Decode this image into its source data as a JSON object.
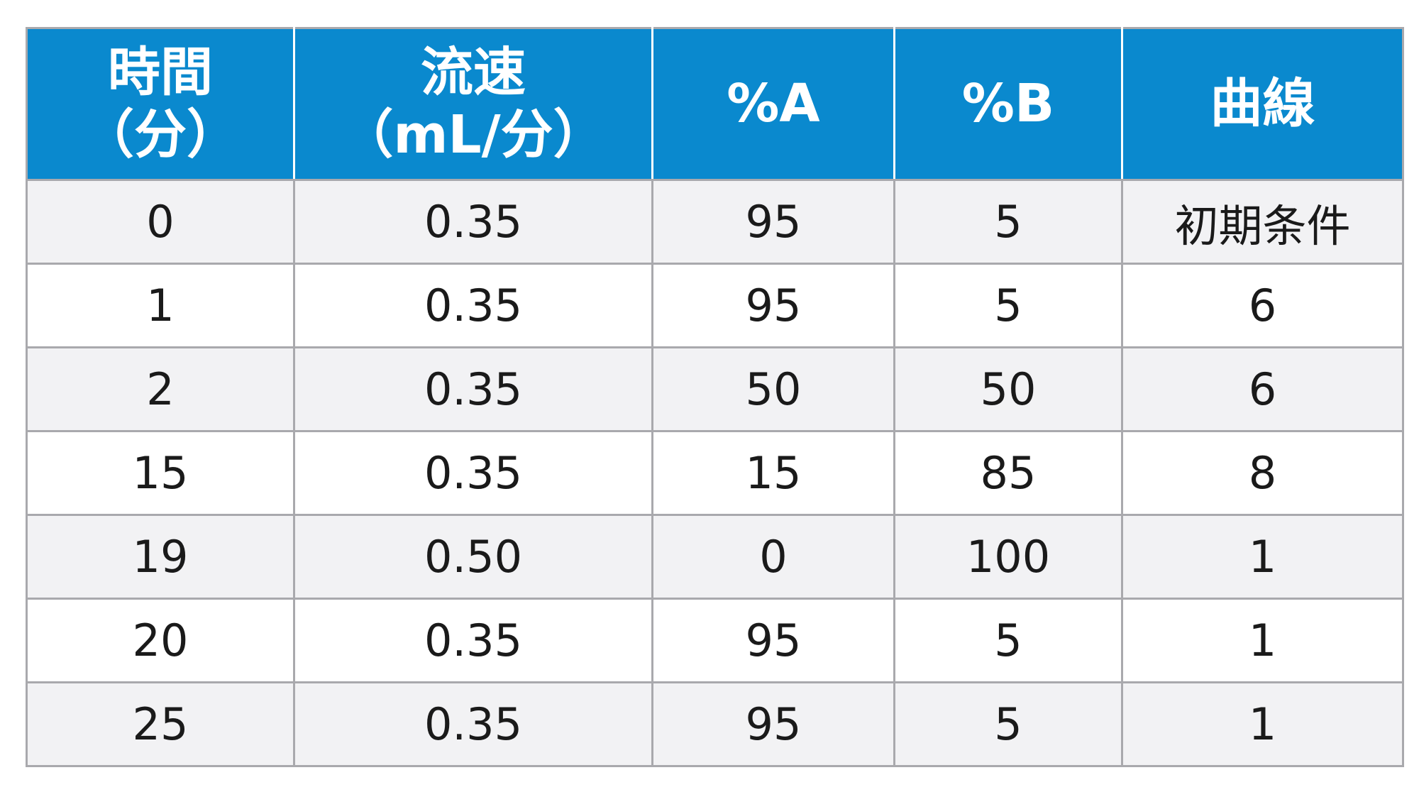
{
  "table": {
    "headers": [
      [
        "時間",
        "（分）"
      ],
      [
        "流速",
        "（mL/分）"
      ],
      [
        "%A"
      ],
      [
        "%B"
      ],
      [
        "曲線"
      ]
    ],
    "rows": [
      [
        "0",
        "0.35",
        "95",
        "5",
        "初期条件"
      ],
      [
        "1",
        "0.35",
        "95",
        "5",
        "6"
      ],
      [
        "2",
        "0.35",
        "50",
        "50",
        "6"
      ],
      [
        "15",
        "0.35",
        "15",
        "85",
        "8"
      ],
      [
        "19",
        "0.50",
        "0",
        "100",
        "1"
      ],
      [
        "20",
        "0.35",
        "95",
        "5",
        "1"
      ],
      [
        "25",
        "0.35",
        "95",
        "5",
        "1"
      ]
    ]
  },
  "colors": {
    "header_background": "#0a89ce",
    "header_text": "#ffffff",
    "stripe_row": "#f2f2f4",
    "plain_row": "#ffffff",
    "grid_line": "#a9a9ad",
    "body_text": "#1a1a1a"
  }
}
